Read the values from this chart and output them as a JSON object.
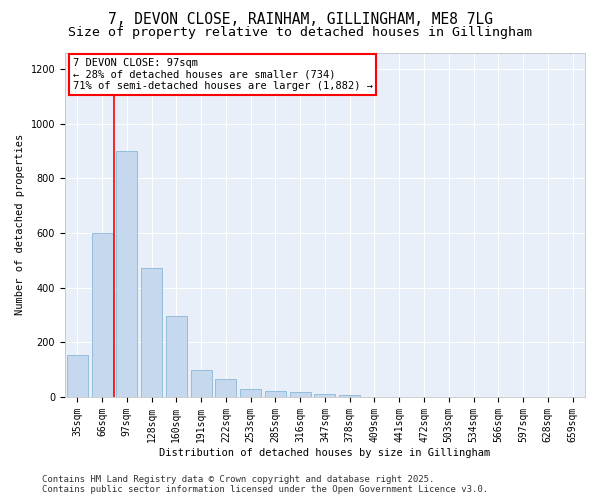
{
  "title": "7, DEVON CLOSE, RAINHAM, GILLINGHAM, ME8 7LG",
  "subtitle": "Size of property relative to detached houses in Gillingham",
  "xlabel": "Distribution of detached houses by size in Gillingham",
  "ylabel": "Number of detached properties",
  "categories": [
    "35sqm",
    "66sqm",
    "97sqm",
    "128sqm",
    "160sqm",
    "191sqm",
    "222sqm",
    "253sqm",
    "285sqm",
    "316sqm",
    "347sqm",
    "378sqm",
    "409sqm",
    "441sqm",
    "472sqm",
    "503sqm",
    "534sqm",
    "566sqm",
    "597sqm",
    "628sqm",
    "659sqm"
  ],
  "values": [
    155,
    600,
    900,
    470,
    295,
    100,
    65,
    28,
    22,
    18,
    12,
    8,
    0,
    0,
    0,
    0,
    0,
    0,
    0,
    0,
    0
  ],
  "bar_color": "#c5d8ee",
  "bar_edge_color": "#7aafd4",
  "redline_x": 1.5,
  "annotation_line1": "7 DEVON CLOSE: 97sqm",
  "annotation_line2": "← 28% of detached houses are smaller (734)",
  "annotation_line3": "71% of semi-detached houses are larger (1,882) →",
  "ylim": [
    0,
    1260
  ],
  "yticks": [
    0,
    200,
    400,
    600,
    800,
    1000,
    1200
  ],
  "footer_line1": "Contains HM Land Registry data © Crown copyright and database right 2025.",
  "footer_line2": "Contains public sector information licensed under the Open Government Licence v3.0.",
  "bg_color": "#ffffff",
  "plot_bg_color": "#e8eff8",
  "grid_color": "#ffffff",
  "title_fontsize": 10.5,
  "subtitle_fontsize": 9.5,
  "axis_label_fontsize": 7.5,
  "tick_fontsize": 7,
  "annotation_fontsize": 7.5,
  "footer_fontsize": 6.5
}
